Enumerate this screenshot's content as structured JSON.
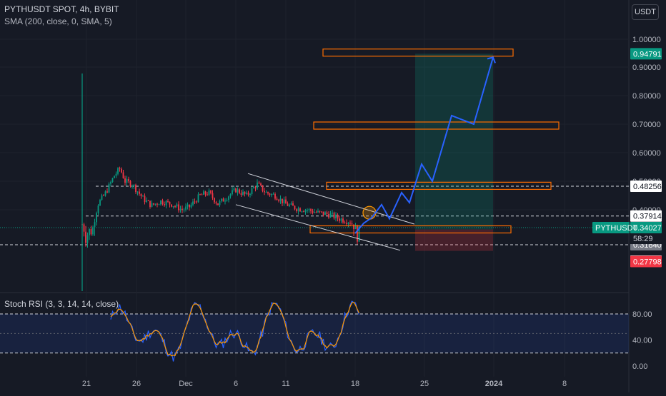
{
  "header": {
    "title": "PYTHUSDT SPOT, 4h, BYBIT",
    "indicator": "SMA (200, close, 0, SMA, 5)"
  },
  "currency_button": "USDT",
  "chart_data": {
    "type": "candlestick",
    "symbol": "PYTHUSDT",
    "exchange": "BYBIT",
    "interval": "4h",
    "y_axis": {
      "ticks": [
        "1.00000",
        "0.90000",
        "0.80000",
        "0.70000",
        "0.60000",
        "0.50000",
        "0.40000"
      ],
      "tick_values": [
        1.0,
        0.9,
        0.8,
        0.7,
        0.6,
        0.5,
        0.4
      ],
      "range": [
        0.25,
        1.05
      ]
    },
    "x_axis": {
      "ticks": [
        "21",
        "26",
        "Dec",
        "6",
        "11",
        "18",
        "25",
        "2024",
        "8"
      ]
    },
    "price_labels": [
      {
        "text": "0.94791",
        "value": 0.94791,
        "color": "#089981"
      },
      {
        "text": "0.48256",
        "value": 0.48256,
        "color": "#ffffff"
      },
      {
        "text": "0.37914",
        "value": 0.37914,
        "color": "#ffffff"
      },
      {
        "text": "0.34027",
        "value": 0.34027,
        "color": "#089981"
      },
      {
        "text": "0.31840",
        "value": 0.3184,
        "color": "#787b86"
      },
      {
        "text": "0.27888",
        "value": 0.27888,
        "color": "#ffffff"
      },
      {
        "text": "0.27798",
        "value": 0.27798,
        "color": "#f23645"
      }
    ],
    "last_price": {
      "symbol": "PYTHUSDT",
      "value": 0.34027,
      "countdown": "58:29"
    },
    "horizontal_levels": [
      0.48256,
      0.37914,
      0.3184
    ],
    "target_boxes": [
      0.952,
      0.695,
      0.484,
      0.338
    ],
    "position": {
      "entry": 0.338,
      "target": 0.94791,
      "stop": 0.3035
    },
    "projection": [
      0.355,
      0.373,
      0.418,
      0.37,
      0.46,
      0.425,
      0.56,
      0.5,
      0.73,
      0.7,
      0.935
    ],
    "stoch_rsi": {
      "name": "Stoch RSI (3, 3, 14, 14, close)",
      "ticks": [
        "80.00",
        "40.00",
        "0.00"
      ],
      "tick_values": [
        80,
        40,
        0
      ],
      "levels": [
        80,
        20
      ]
    }
  }
}
